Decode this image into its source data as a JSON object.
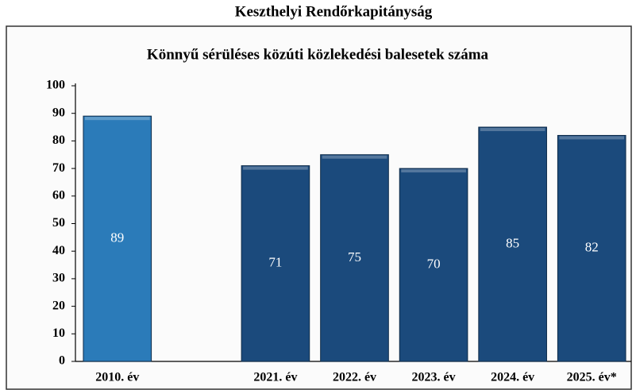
{
  "chart_data": {
    "type": "bar",
    "title": "Keszthelyi Rendőrkapitányság",
    "subtitle": "Könnyű sérüléses közúti közlekedési balesetek száma",
    "categories": [
      "2010. év",
      null,
      "2021. év",
      "2022. év",
      "2023. év",
      "2024. év",
      "2025. év*"
    ],
    "values": [
      89,
      null,
      71,
      75,
      70,
      85,
      82
    ],
    "colors": [
      "#2b7bb9",
      null,
      "#1b4a7c",
      "#1b4a7c",
      "#1b4a7c",
      "#1b4a7c",
      "#1b4a7c"
    ],
    "ylim": [
      0,
      100
    ],
    "yticks": [
      0,
      10,
      20,
      30,
      40,
      50,
      60,
      70,
      80,
      90,
      100
    ],
    "grid": false
  }
}
